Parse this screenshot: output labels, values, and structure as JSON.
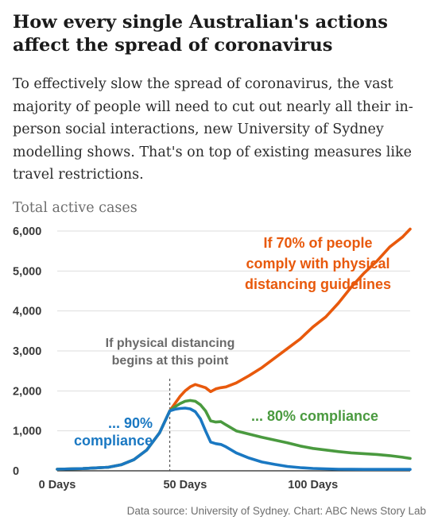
{
  "title": "How every single Australian's actions affect the spread of coronavirus",
  "subtitle": "To effectively slow the spread of coronavirus, the vast majority of people will need to cut out nearly all their in-person social interactions, new University of Sydney modelling shows. That's on top of existing measures like travel restrictions.",
  "source": "Data source: University of Sydney. Chart: ABC News Story Lab",
  "chart_data": {
    "type": "line",
    "ylabel": "Total active cases",
    "xlabel": "",
    "xlim": [
      0,
      138
    ],
    "ylim": [
      0,
      6000
    ],
    "yticks": [
      0,
      1000,
      2000,
      3000,
      4000,
      5000,
      6000
    ],
    "ytick_labels": [
      "0",
      "1,000",
      "2,000",
      "3,000",
      "4,000",
      "5,000",
      "6,000"
    ],
    "xticks": [
      0,
      50,
      100
    ],
    "xtick_labels": [
      "0 Days",
      "50 Days",
      "100 Days"
    ],
    "grid": "horizontal",
    "intervention": {
      "day": 44,
      "label_lines": [
        "If physical distancing",
        "begins at this point"
      ]
    },
    "series": [
      {
        "name": "70%",
        "color": "#e8590c",
        "label_lines": [
          "If 70% of people",
          "comply with physical",
          "distancing guidelines"
        ],
        "x": [
          0,
          10,
          20,
          25,
          30,
          35,
          40,
          44,
          46,
          48,
          50,
          52,
          54,
          56,
          58,
          60,
          62,
          64,
          66,
          70,
          75,
          80,
          85,
          90,
          95,
          100,
          105,
          110,
          115,
          120,
          125,
          130,
          135,
          138
        ],
        "y": [
          40,
          55,
          90,
          150,
          280,
          520,
          950,
          1500,
          1680,
          1860,
          2000,
          2100,
          2160,
          2120,
          2080,
          1980,
          2050,
          2080,
          2100,
          2200,
          2380,
          2580,
          2820,
          3060,
          3300,
          3600,
          3850,
          4200,
          4600,
          4950,
          5250,
          5600,
          5850,
          6050
        ]
      },
      {
        "name": "80%",
        "color": "#4a9a3f",
        "label_lines": [
          "... 80% compliance"
        ],
        "x": [
          0,
          10,
          20,
          25,
          30,
          35,
          40,
          44,
          46,
          48,
          50,
          52,
          54,
          56,
          58,
          60,
          62,
          64,
          66,
          70,
          75,
          80,
          85,
          90,
          95,
          100,
          105,
          110,
          115,
          120,
          125,
          130,
          135,
          138
        ],
        "y": [
          40,
          55,
          90,
          150,
          280,
          520,
          950,
          1500,
          1600,
          1680,
          1740,
          1760,
          1740,
          1650,
          1500,
          1250,
          1220,
          1230,
          1150,
          1000,
          920,
          840,
          770,
          700,
          620,
          560,
          520,
          480,
          450,
          430,
          410,
          380,
          340,
          310
        ]
      },
      {
        "name": "90%",
        "color": "#1a78c2",
        "label_lines": [
          "... 90%",
          "compliance"
        ],
        "x": [
          0,
          10,
          20,
          25,
          30,
          35,
          40,
          44,
          46,
          48,
          50,
          52,
          54,
          56,
          58,
          60,
          62,
          64,
          66,
          70,
          75,
          80,
          85,
          90,
          95,
          100,
          105,
          110,
          115,
          120,
          125,
          130,
          135,
          138
        ],
        "y": [
          40,
          55,
          90,
          150,
          280,
          520,
          950,
          1500,
          1540,
          1560,
          1570,
          1550,
          1480,
          1300,
          1000,
          720,
          680,
          660,
          600,
          450,
          320,
          220,
          160,
          110,
          80,
          60,
          50,
          40,
          38,
          36,
          35,
          35,
          35,
          35
        ]
      }
    ]
  }
}
